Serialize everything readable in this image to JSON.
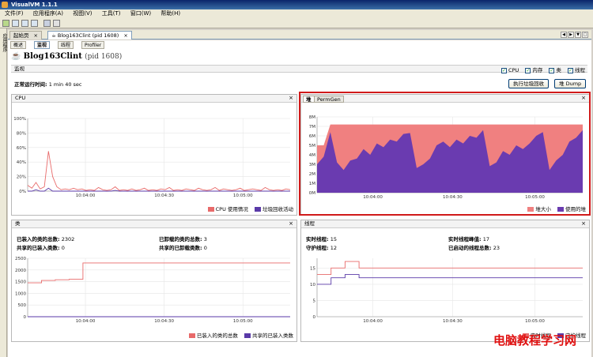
{
  "window": {
    "title": "VisualVM 1.1.1"
  },
  "menu": [
    "文件(F)",
    "应用程序(A)",
    "视图(V)",
    "工具(T)",
    "窗口(W)",
    "帮助(H)"
  ],
  "sidebar_label": "应用程序",
  "doc_tabs": [
    {
      "label": "起始页",
      "active": false
    },
    {
      "label": "Blog163Clint (pid 1608)",
      "active": true
    }
  ],
  "sub_tabs": [
    {
      "label": "概述",
      "active": false
    },
    {
      "label": "监视",
      "active": true
    },
    {
      "label": "线程",
      "active": false
    },
    {
      "label": "Profiler",
      "active": false
    }
  ],
  "app": {
    "name": "Blog163Clint",
    "pid": "(pid 1608)"
  },
  "monitor": {
    "header": "监视",
    "checks": [
      "CPU",
      "内存",
      "类",
      "线程"
    ],
    "uptime_label": "正常运行时间:",
    "uptime_value": "1 min 40 sec",
    "gc_button": "执行垃圾回收",
    "heapdump_button": "堆 Dump"
  },
  "cpu_panel": {
    "title": "CPU",
    "legend": [
      "CPU 使用情况",
      "垃圾回收活动"
    ]
  },
  "heap_panel": {
    "tabs": [
      "堆",
      "PermGen"
    ],
    "legend": [
      "堆大小",
      "使用的堆"
    ]
  },
  "classes_panel": {
    "title": "类",
    "stats": [
      {
        "k": "已装入的类的总数:",
        "v": "2302"
      },
      {
        "k": "已卸载的类的总数:",
        "v": "3"
      },
      {
        "k": "共享的已装入类数:",
        "v": "0"
      },
      {
        "k": "共享的已卸载类数:",
        "v": "0"
      }
    ],
    "legend": [
      "已装入的类的总数",
      "共享的已装入类数"
    ]
  },
  "threads_panel": {
    "title": "线程",
    "stats": [
      {
        "k": "实时线程:",
        "v": "15"
      },
      {
        "k": "实时线程峰值:",
        "v": "17"
      },
      {
        "k": "守护线程:",
        "v": "12"
      },
      {
        "k": "已启动的线程总数:",
        "v": "23"
      }
    ],
    "legend": [
      "实时线程",
      "守护线程"
    ]
  },
  "watermark": "电脑教程学习网",
  "colors": {
    "accent_red": "#e84545",
    "series_blue": "#5a3aa8",
    "heap_fill": "#f08080",
    "used_heap_fill": "#6a3bb0"
  },
  "chart_data": [
    {
      "type": "line",
      "title": "CPU",
      "x_ticks": [
        "10:04:00",
        "10:04:30",
        "10:05:00"
      ],
      "y_ticks": [
        "0%",
        "20%",
        "40%",
        "60%",
        "80%",
        "100%"
      ],
      "ylim": [
        0,
        100
      ],
      "series": [
        {
          "name": "CPU 使用情况",
          "values": [
            8,
            4,
            12,
            3,
            6,
            55,
            20,
            6,
            2,
            3,
            2,
            4,
            2,
            3,
            1,
            2,
            1,
            5,
            2,
            1,
            2,
            6,
            1,
            2,
            1,
            3,
            1,
            2,
            4,
            1,
            2,
            1,
            3,
            2,
            5,
            1,
            2,
            1,
            3,
            2,
            1,
            4,
            2,
            1,
            2,
            5,
            1,
            3,
            2,
            1,
            2,
            4,
            1,
            2,
            3,
            2,
            1,
            5,
            2,
            1,
            2,
            1,
            3,
            2
          ]
        },
        {
          "name": "垃圾回收活动",
          "values": [
            0,
            0,
            2,
            0,
            0,
            4,
            0,
            0,
            0,
            0,
            0,
            0,
            0,
            0,
            0,
            0,
            0,
            0,
            0,
            0,
            0,
            1,
            0,
            0,
            0,
            0,
            0,
            0,
            0,
            0,
            0,
            0,
            0,
            0,
            0,
            0,
            0,
            0,
            0,
            0,
            0,
            0,
            0,
            0,
            0,
            0,
            0,
            0,
            0,
            0,
            0,
            0,
            0,
            0,
            0,
            0,
            0,
            0,
            0,
            0,
            0,
            0,
            0,
            0
          ]
        }
      ]
    },
    {
      "type": "area",
      "title": "堆",
      "x_ticks": [
        "10:04:00",
        "10:04:30",
        "10:05:00"
      ],
      "y_ticks": [
        "0M",
        "1M",
        "2M",
        "3M",
        "4M",
        "5M",
        "6M",
        "7M",
        "8M"
      ],
      "ylim": [
        0,
        8
      ],
      "series": [
        {
          "name": "堆大小",
          "values": [
            5.0,
            5.0,
            7.2,
            7.2,
            7.2,
            7.2,
            7.2,
            7.2,
            7.2,
            7.2,
            7.2,
            7.2,
            7.2,
            7.2,
            7.2,
            7.2,
            7.2,
            7.2,
            7.2,
            7.2,
            7.2,
            7.2,
            7.2,
            7.2,
            7.2,
            7.2,
            7.2,
            7.2,
            7.2,
            7.2,
            7.2,
            7.2,
            7.2,
            7.2,
            7.2,
            7.2,
            7.2,
            7.2,
            7.2,
            7.2,
            7.2
          ]
        },
        {
          "name": "使用的堆",
          "values": [
            3.0,
            3.8,
            6.4,
            3.2,
            2.4,
            3.4,
            3.6,
            4.6,
            4.0,
            5.2,
            4.8,
            5.6,
            5.4,
            6.2,
            6.3,
            2.6,
            3.0,
            3.6,
            5.0,
            5.4,
            4.8,
            5.6,
            5.2,
            6.0,
            5.8,
            6.6,
            2.8,
            3.2,
            4.4,
            4.0,
            5.0,
            4.6,
            5.2,
            6.0,
            6.4,
            2.4,
            3.4,
            4.0,
            5.4,
            5.8,
            6.6
          ]
        }
      ]
    },
    {
      "type": "line",
      "title": "类",
      "x_ticks": [
        "10:04:00",
        "10:04:30",
        "10:05:00"
      ],
      "y_ticks": [
        "0",
        "500",
        "1000",
        "1500",
        "2000",
        "2500"
      ],
      "ylim": [
        0,
        2500
      ],
      "series": [
        {
          "name": "已装入的类的总数",
          "values": [
            1450,
            1550,
            1580,
            1600,
            2300,
            2302,
            2302,
            2302,
            2302,
            2302,
            2302,
            2302,
            2302,
            2302,
            2302,
            2302,
            2302,
            2302,
            2302,
            2302
          ]
        },
        {
          "name": "共享的已装入类数",
          "values": [
            0,
            0,
            0,
            0,
            0,
            0,
            0,
            0,
            0,
            0,
            0,
            0,
            0,
            0,
            0,
            0,
            0,
            0,
            0,
            0
          ]
        }
      ]
    },
    {
      "type": "line",
      "title": "线程",
      "x_ticks": [
        "10:04:00",
        "10:04:30",
        "10:05:00"
      ],
      "y_ticks": [
        "0",
        "5",
        "10",
        "15"
      ],
      "ylim": [
        0,
        18
      ],
      "series": [
        {
          "name": "实时线程",
          "values": [
            13,
            15,
            17,
            15,
            15,
            15,
            15,
            15,
            15,
            15,
            15,
            15,
            15,
            15,
            15,
            15,
            15,
            15,
            15,
            15
          ]
        },
        {
          "name": "守护线程",
          "values": [
            10,
            12,
            13,
            12,
            12,
            12,
            12,
            12,
            12,
            12,
            12,
            12,
            12,
            12,
            12,
            12,
            12,
            12,
            12,
            12
          ]
        }
      ]
    }
  ]
}
